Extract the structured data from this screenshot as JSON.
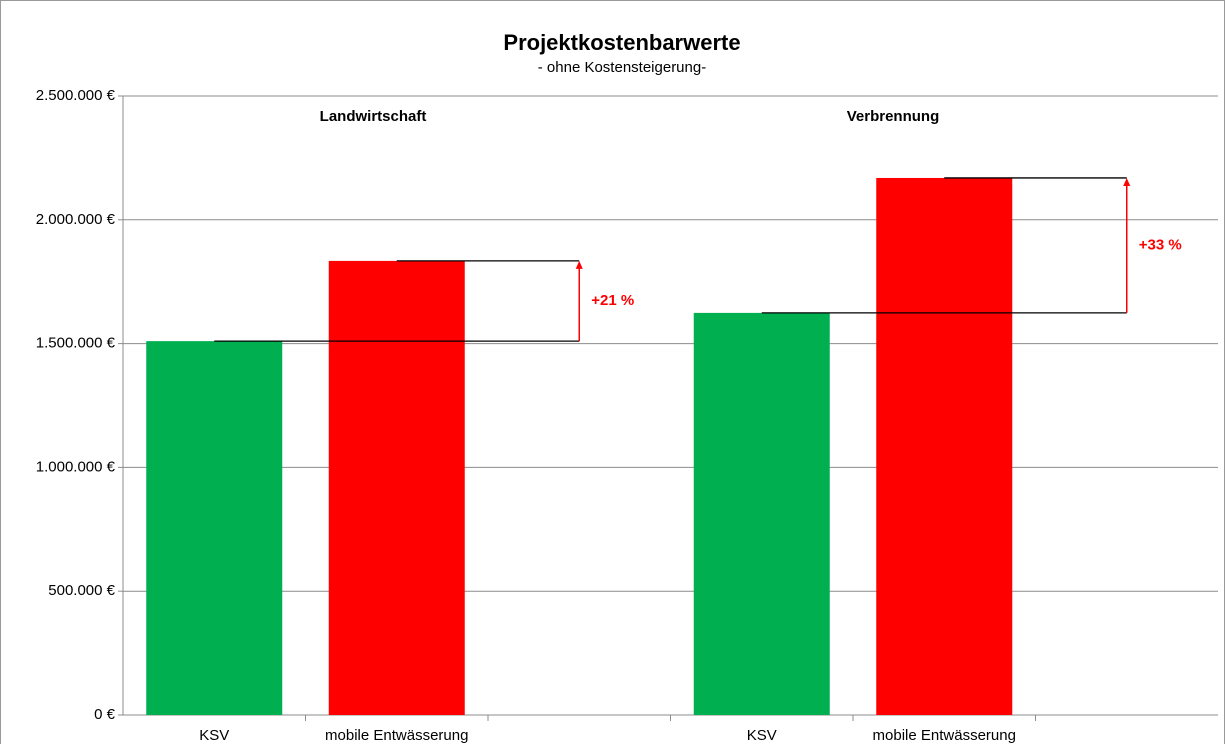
{
  "chart_data": {
    "type": "bar",
    "title": "Projektkostenbarwerte",
    "subtitle": "- ohne Kostensteigerung-",
    "categories": [
      "KSV",
      "mobile Entwässerung",
      null,
      "KSV",
      "mobile Entwässerung",
      null
    ],
    "values": [
      1510000,
      1834000,
      null,
      1624000,
      2169000,
      null
    ],
    "colors": [
      "#00b050",
      "#ff0000",
      null,
      "#00b050",
      "#ff0000",
      null
    ],
    "group_labels": [
      "Landwirtschaft",
      "Verbrennung"
    ],
    "change_labels": [
      "+21 %",
      "+33 %"
    ],
    "ylim": [
      0,
      2500000
    ],
    "yticks": [
      {
        "value": 0,
        "label": "0 €"
      },
      {
        "value": 500000,
        "label": "500.000 €"
      },
      {
        "value": 1000000,
        "label": "1.000.000 €"
      },
      {
        "value": 1500000,
        "label": "1.500.000 €"
      },
      {
        "value": 2000000,
        "label": "2.000.000 €"
      },
      {
        "value": 2500000,
        "label": "2.500.000 €"
      }
    ],
    "grid": true
  }
}
